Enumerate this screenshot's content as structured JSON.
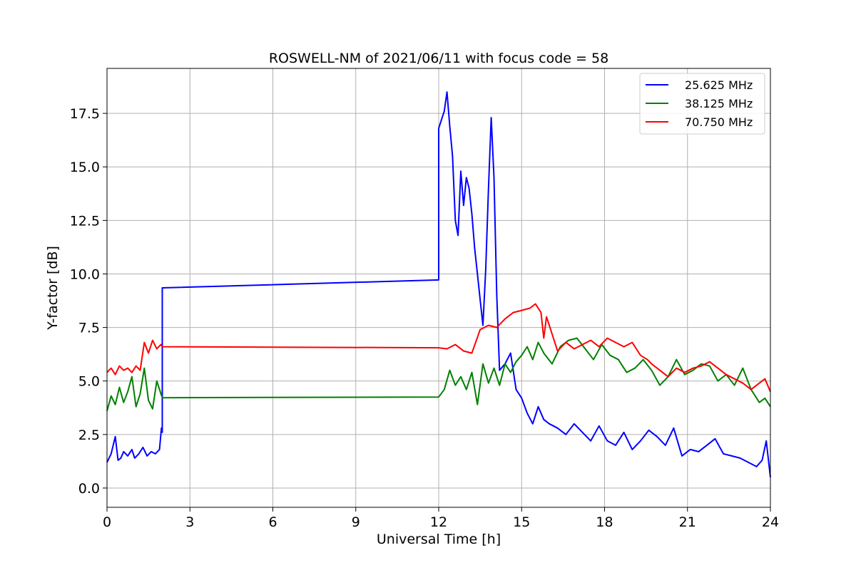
{
  "chart_data": {
    "type": "line",
    "title": "ROSWELL-NM of 2021/06/11 with focus code = 58",
    "xlabel": "Universal Time [h]",
    "ylabel": "Y-factor [dB]",
    "xlim": [
      0,
      24
    ],
    "ylim": [
      -0.9,
      19.6
    ],
    "xticks": [
      0,
      3,
      6,
      9,
      12,
      15,
      18,
      21,
      24
    ],
    "xtick_labels": [
      "0",
      "3",
      "6",
      "9",
      "12",
      "15",
      "18",
      "21",
      "24"
    ],
    "yticks": [
      0,
      2.5,
      5,
      7.5,
      10,
      12.5,
      15,
      17.5
    ],
    "ytick_labels": [
      "0.0",
      "2.5",
      "5.0",
      "7.5",
      "10.0",
      "12.5",
      "15.0",
      "17.5"
    ],
    "grid": true,
    "legend_position": "top-right",
    "series": [
      {
        "name": "25.625 MHz",
        "color": "#0000ff",
        "x": [
          0,
          0.15,
          0.3,
          0.4,
          0.5,
          0.6,
          0.75,
          0.9,
          1.0,
          1.15,
          1.3,
          1.45,
          1.6,
          1.75,
          1.9,
          1.97,
          2.0,
          2.0,
          12.0,
          12.0,
          12.1,
          12.2,
          12.3,
          12.4,
          12.5,
          12.6,
          12.7,
          12.8,
          12.9,
          13.0,
          13.1,
          13.2,
          13.3,
          13.4,
          13.5,
          13.6,
          13.7,
          13.8,
          13.9,
          14.0,
          14.1,
          14.2,
          14.4,
          14.6,
          14.8,
          15.0,
          15.2,
          15.4,
          15.6,
          15.8,
          16.0,
          16.3,
          16.6,
          16.9,
          17.2,
          17.5,
          17.8,
          18.1,
          18.4,
          18.7,
          19.0,
          19.3,
          19.6,
          19.9,
          20.2,
          20.5,
          20.8,
          21.1,
          21.4,
          21.7,
          22.0,
          22.3,
          22.6,
          22.9,
          23.2,
          23.5,
          23.7,
          23.85,
          24.0
        ],
        "y": [
          1.2,
          1.6,
          2.4,
          1.3,
          1.4,
          1.7,
          1.5,
          1.8,
          1.4,
          1.6,
          1.9,
          1.5,
          1.7,
          1.6,
          1.8,
          2.8,
          2.6,
          9.35,
          9.72,
          16.8,
          17.2,
          17.6,
          18.5,
          16.9,
          15.5,
          12.5,
          11.8,
          14.8,
          13.2,
          14.5,
          14.0,
          12.8,
          11.2,
          10.0,
          8.8,
          7.6,
          10.2,
          14.0,
          17.3,
          14.5,
          9.0,
          5.5,
          5.8,
          6.3,
          4.6,
          4.2,
          3.5,
          3.0,
          3.8,
          3.2,
          3.0,
          2.8,
          2.5,
          3.0,
          2.6,
          2.2,
          2.9,
          2.2,
          2.0,
          2.6,
          1.8,
          2.2,
          2.7,
          2.4,
          2.0,
          2.8,
          1.5,
          1.8,
          1.7,
          2.0,
          2.3,
          1.6,
          1.5,
          1.4,
          1.2,
          1.0,
          1.3,
          2.2,
          0.5
        ]
      },
      {
        "name": "38.125 MHz",
        "color": "#008000",
        "x": [
          0,
          0.15,
          0.3,
          0.45,
          0.6,
          0.75,
          0.9,
          1.05,
          1.2,
          1.35,
          1.5,
          1.65,
          1.8,
          1.95,
          2.0,
          12.0,
          12.2,
          12.4,
          12.6,
          12.8,
          13.0,
          13.2,
          13.4,
          13.6,
          13.8,
          14.0,
          14.2,
          14.4,
          14.6,
          14.8,
          15.0,
          15.2,
          15.4,
          15.6,
          15.8,
          16.1,
          16.4,
          16.7,
          17.0,
          17.3,
          17.6,
          17.9,
          18.2,
          18.5,
          18.8,
          19.1,
          19.4,
          19.7,
          20.0,
          20.3,
          20.6,
          20.9,
          21.2,
          21.5,
          21.8,
          22.1,
          22.4,
          22.7,
          23.0,
          23.3,
          23.6,
          23.8,
          24.0
        ],
        "y": [
          3.6,
          4.3,
          3.9,
          4.7,
          4.0,
          4.5,
          5.2,
          3.8,
          4.4,
          5.6,
          4.1,
          3.7,
          5.0,
          4.4,
          4.22,
          4.25,
          4.6,
          5.5,
          4.8,
          5.2,
          4.6,
          5.4,
          3.9,
          5.8,
          4.9,
          5.6,
          4.8,
          5.8,
          5.4,
          5.9,
          6.2,
          6.6,
          6.0,
          6.8,
          6.3,
          5.8,
          6.6,
          6.9,
          7.0,
          6.5,
          6.0,
          6.7,
          6.2,
          6.0,
          5.4,
          5.6,
          6.0,
          5.5,
          4.8,
          5.2,
          6.0,
          5.3,
          5.5,
          5.8,
          5.7,
          5.0,
          5.3,
          4.8,
          5.6,
          4.6,
          4.0,
          4.2,
          3.8
        ]
      },
      {
        "name": "70.750 MHz",
        "color": "#ff0000",
        "x": [
          0,
          0.15,
          0.3,
          0.45,
          0.6,
          0.75,
          0.9,
          1.05,
          1.2,
          1.35,
          1.5,
          1.65,
          1.8,
          1.95,
          2.0,
          12.0,
          12.3,
          12.6,
          12.9,
          13.2,
          13.5,
          13.8,
          14.1,
          14.4,
          14.7,
          15.0,
          15.3,
          15.5,
          15.7,
          15.8,
          15.9,
          16.0,
          16.3,
          16.6,
          16.9,
          17.2,
          17.5,
          17.8,
          18.1,
          18.4,
          18.7,
          19.0,
          19.3,
          19.55,
          19.7,
          20.0,
          20.3,
          20.6,
          20.9,
          21.2,
          21.5,
          21.8,
          22.1,
          22.4,
          22.7,
          23.0,
          23.3,
          23.6,
          23.8,
          24.0
        ],
        "y": [
          5.4,
          5.6,
          5.3,
          5.7,
          5.5,
          5.6,
          5.4,
          5.7,
          5.5,
          6.8,
          6.3,
          6.9,
          6.5,
          6.7,
          6.6,
          6.55,
          6.5,
          6.7,
          6.4,
          6.3,
          7.4,
          7.6,
          7.5,
          7.9,
          8.2,
          8.3,
          8.4,
          8.6,
          8.2,
          7.0,
          8.0,
          7.6,
          6.4,
          6.8,
          6.5,
          6.7,
          6.9,
          6.6,
          7.0,
          6.8,
          6.6,
          6.8,
          6.2,
          6.0,
          5.8,
          5.5,
          5.2,
          5.6,
          5.4,
          5.6,
          5.7,
          5.9,
          5.6,
          5.3,
          5.1,
          4.9,
          4.6,
          4.9,
          5.1,
          4.5
        ]
      }
    ]
  }
}
